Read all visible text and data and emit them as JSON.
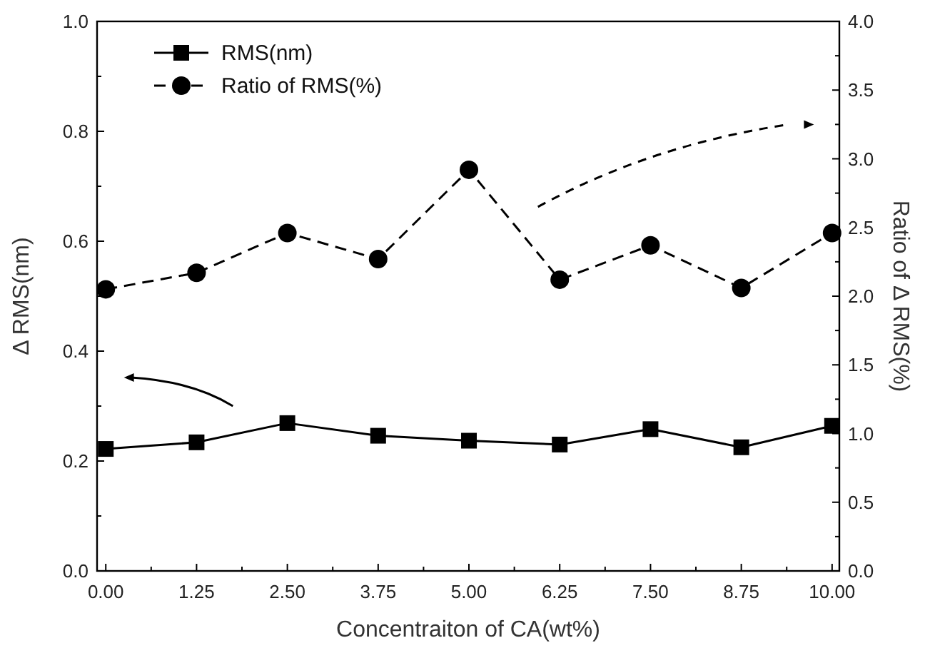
{
  "chart_data": {
    "type": "line",
    "xlabel": "Concentraiton of CA(wt%)",
    "ylabel": "Δ RMS(nm)",
    "y2label": "Ratio of Δ RMS(%)",
    "x": [
      0,
      1.25,
      2.5,
      3.75,
      5,
      6.25,
      7.5,
      8.75,
      10
    ],
    "xlim": [
      -0.12,
      10.1
    ],
    "xticks": [
      {
        "value": 0,
        "label": "0.00"
      },
      {
        "value": 1.25,
        "label": "1.25"
      },
      {
        "value": 2.5,
        "label": "2.50"
      },
      {
        "value": 3.75,
        "label": "3.75"
      },
      {
        "value": 5,
        "label": "5.00"
      },
      {
        "value": 6.25,
        "label": "6.25"
      },
      {
        "value": 7.5,
        "label": "7.50"
      },
      {
        "value": 8.75,
        "label": "8.75"
      },
      {
        "value": 10,
        "label": "10.00"
      }
    ],
    "ylim": [
      0,
      1
    ],
    "yticks": [
      {
        "value": 0,
        "label": "0.0"
      },
      {
        "value": 0.2,
        "label": "0.2"
      },
      {
        "value": 0.4,
        "label": "0.4"
      },
      {
        "value": 0.6,
        "label": "0.6"
      },
      {
        "value": 0.8,
        "label": "0.8"
      },
      {
        "value": 1,
        "label": "1.0"
      }
    ],
    "y2lim": [
      0,
      4
    ],
    "y2ticks": [
      {
        "value": 0,
        "label": "0.0"
      },
      0.5,
      {
        "value": 1,
        "label": "1.0"
      },
      1.5,
      {
        "value": 2,
        "label": "2.0"
      },
      2.5,
      {
        "value": 3,
        "label": "3.0"
      },
      3.5,
      {
        "value": 4,
        "label": "4.0"
      }
    ],
    "legend": "top left",
    "grid": false,
    "series": [
      {
        "name": "RMS(nm)",
        "color": "#000000",
        "marker": "square",
        "line_style": "solid",
        "values": [
          0.222,
          0.234,
          0.269,
          0.246,
          0.237,
          0.23,
          0.258,
          0.225,
          0.264
        ]
      },
      {
        "name": "Ratio of RMS(%)",
        "color": "#000000",
        "marker": "circle",
        "line_style": "dashed",
        "axis": "y2",
        "values": [
          2.05,
          2.17,
          2.46,
          2.27,
          2.92,
          2.12,
          2.37,
          2.06,
          2.46
        ]
      }
    ]
  }
}
